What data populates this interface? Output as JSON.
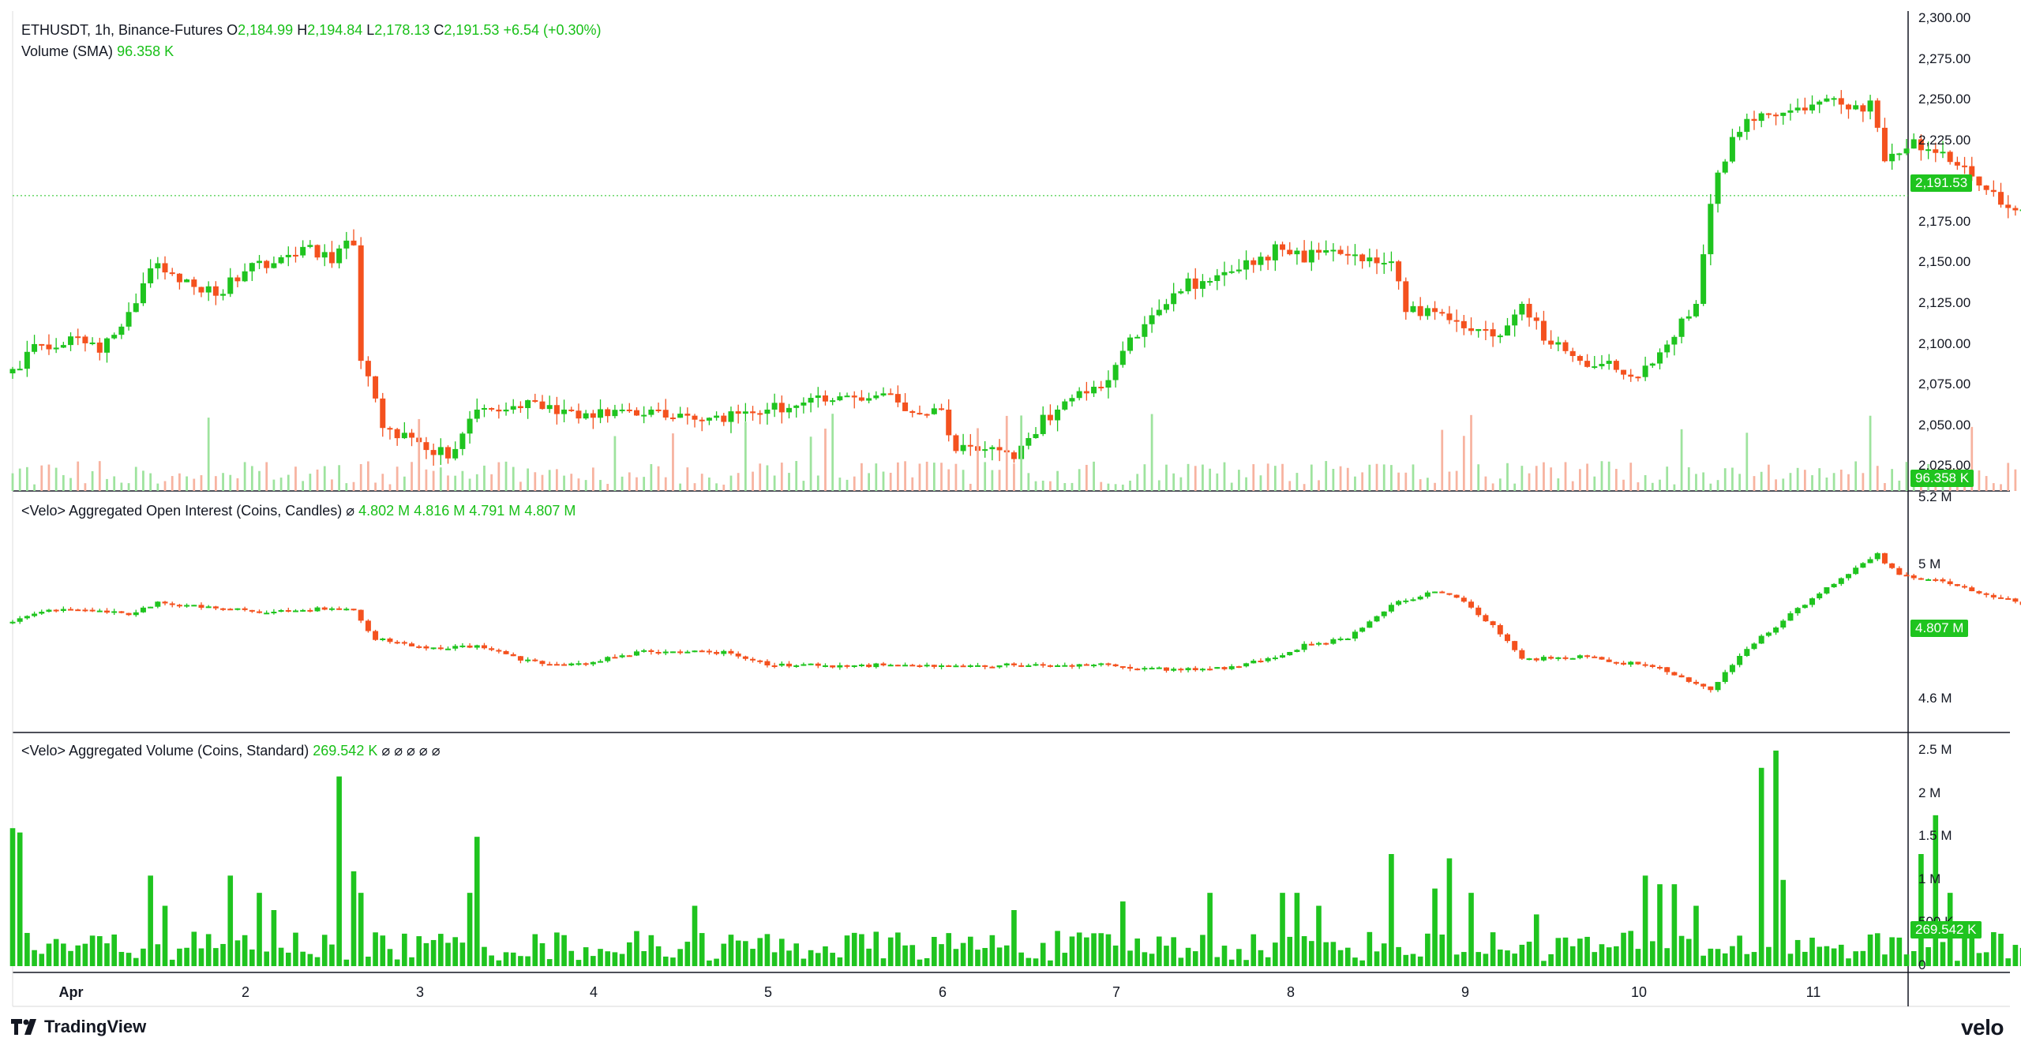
{
  "header": {
    "symbol_line": "ETHUSDT, 1h, Binance-Futures",
    "ohlc": [
      {
        "k": "O",
        "v": "2,184.99"
      },
      {
        "k": "H",
        "v": "2,194.84"
      },
      {
        "k": "L",
        "v": "2,178.13"
      },
      {
        "k": "C",
        "v": "2,191.53"
      }
    ],
    "change": "+6.54 (+0.30%)",
    "volume_label": "Volume (SMA)",
    "volume_value": "96.358 K"
  },
  "panes": {
    "oi": {
      "title": "<Velo> Aggregated Open Interest (Coins, Candles)",
      "sym": "⌀",
      "values": [
        "4.802 M",
        "4.816 M",
        "4.791 M",
        "4.807 M"
      ]
    },
    "vol": {
      "title": "<Velo> Aggregated Volume (Coins, Standard)",
      "value": "269.542 K",
      "trail": "⌀ ⌀ ⌀ ⌀ ⌀"
    }
  },
  "axes": {
    "price_ticks": [
      "2,300.00",
      "2,275.00",
      "2,250.00",
      "2,225.00",
      "2,200.00",
      "2,175.00",
      "2,150.00",
      "2,125.00",
      "2,100.00",
      "2,075.00",
      "2,050.00",
      "2,025.00"
    ],
    "oi_ticks": [
      "5.2 M",
      "5 M",
      "4.6 M"
    ],
    "vol_ticks": [
      "2.5 M",
      "2 M",
      "1.5 M",
      "1 M",
      "500 K",
      "0"
    ],
    "dates": [
      "Apr",
      "2",
      "3",
      "4",
      "5",
      "6",
      "7",
      "8",
      "9",
      "10",
      "11"
    ]
  },
  "tags": {
    "price": "2,191.53",
    "volume_sma": "96.358 K",
    "oi": "4.807 M",
    "agg_vol": "269.542 K"
  },
  "branding": {
    "left": "TradingView",
    "right": "velo"
  },
  "colors": {
    "up": "#1fc41f",
    "down": "#f4511e",
    "up_vol": "#9ee39e",
    "down_vol": "#f7b3a0",
    "grid": "#131722"
  },
  "chart_data": [
    {
      "type": "candlestick",
      "title": "ETHUSDT, 1h, Binance-Futures",
      "x_labels": [
        "Apr",
        "2",
        "3",
        "4",
        "5",
        "6",
        "7",
        "8",
        "9",
        "10",
        "11"
      ],
      "ylim": [
        2010,
        2305
      ],
      "anchors_close": [
        [
          0,
          2085
        ],
        [
          4,
          2100
        ],
        [
          8,
          2105
        ],
        [
          12,
          2095
        ],
        [
          16,
          2120
        ],
        [
          20,
          2150
        ],
        [
          24,
          2140
        ],
        [
          28,
          2130
        ],
        [
          32,
          2145
        ],
        [
          36,
          2150
        ],
        [
          40,
          2160
        ],
        [
          44,
          2150
        ],
        [
          47,
          2165
        ],
        [
          48,
          2090
        ],
        [
          51,
          2050
        ],
        [
          56,
          2040
        ],
        [
          60,
          2030
        ],
        [
          64,
          2060
        ],
        [
          68,
          2060
        ],
        [
          72,
          2065
        ],
        [
          76,
          2060
        ],
        [
          80,
          2055
        ],
        [
          84,
          2060
        ],
        [
          88,
          2060
        ],
        [
          96,
          2055
        ],
        [
          104,
          2060
        ],
        [
          112,
          2065
        ],
        [
          120,
          2070
        ],
        [
          124,
          2058
        ],
        [
          128,
          2060
        ],
        [
          130,
          2035
        ],
        [
          134,
          2040
        ],
        [
          138,
          2030
        ],
        [
          142,
          2055
        ],
        [
          146,
          2065
        ],
        [
          150,
          2075
        ],
        [
          154,
          2100
        ],
        [
          158,
          2125
        ],
        [
          162,
          2138
        ],
        [
          166,
          2140
        ],
        [
          170,
          2150
        ],
        [
          174,
          2158
        ],
        [
          178,
          2153
        ],
        [
          182,
          2160
        ],
        [
          186,
          2150
        ],
        [
          190,
          2150
        ],
        [
          192,
          2120
        ],
        [
          196,
          2120
        ],
        [
          200,
          2110
        ],
        [
          204,
          2105
        ],
        [
          208,
          2125
        ],
        [
          212,
          2100
        ],
        [
          216,
          2090
        ],
        [
          220,
          2090
        ],
        [
          224,
          2080
        ],
        [
          228,
          2100
        ],
        [
          232,
          2125
        ],
        [
          234,
          2190
        ],
        [
          238,
          2235
        ],
        [
          242,
          2240
        ],
        [
          246,
          2245
        ],
        [
          250,
          2250
        ],
        [
          254,
          2245
        ],
        [
          256,
          2250
        ],
        [
          258,
          2210
        ],
        [
          262,
          2225
        ],
        [
          266,
          2215
        ],
        [
          270,
          2205
        ],
        [
          274,
          2185
        ],
        [
          278,
          2180
        ],
        [
          282,
          2182
        ],
        [
          286,
          2185
        ],
        [
          288,
          2192
        ]
      ],
      "last": {
        "open": 2184.99,
        "high": 2194.84,
        "low": 2178.13,
        "close": 2191.53
      }
    },
    {
      "type": "candlestick",
      "title": "<Velo> Aggregated Open Interest (Coins, Candles)",
      "ylim": [
        4.5,
        5.22
      ],
      "anchors_close": [
        [
          0,
          4.83
        ],
        [
          4,
          4.86
        ],
        [
          10,
          4.87
        ],
        [
          16,
          4.85
        ],
        [
          20,
          4.89
        ],
        [
          24,
          4.88
        ],
        [
          28,
          4.87
        ],
        [
          36,
          4.86
        ],
        [
          44,
          4.87
        ],
        [
          47,
          4.86
        ],
        [
          50,
          4.78
        ],
        [
          54,
          4.76
        ],
        [
          60,
          4.75
        ],
        [
          64,
          4.76
        ],
        [
          70,
          4.72
        ],
        [
          76,
          4.7
        ],
        [
          80,
          4.71
        ],
        [
          86,
          4.74
        ],
        [
          92,
          4.74
        ],
        [
          98,
          4.74
        ],
        [
          104,
          4.7
        ],
        [
          112,
          4.7
        ],
        [
          120,
          4.7
        ],
        [
          130,
          4.7
        ],
        [
          140,
          4.7
        ],
        [
          150,
          4.7
        ],
        [
          158,
          4.69
        ],
        [
          166,
          4.69
        ],
        [
          174,
          4.72
        ],
        [
          178,
          4.76
        ],
        [
          184,
          4.78
        ],
        [
          190,
          4.88
        ],
        [
          196,
          4.92
        ],
        [
          200,
          4.89
        ],
        [
          204,
          4.82
        ],
        [
          208,
          4.72
        ],
        [
          212,
          4.72
        ],
        [
          216,
          4.73
        ],
        [
          220,
          4.71
        ],
        [
          226,
          4.7
        ],
        [
          230,
          4.66
        ],
        [
          234,
          4.63
        ],
        [
          238,
          4.73
        ],
        [
          242,
          4.8
        ],
        [
          248,
          4.9
        ],
        [
          254,
          4.99
        ],
        [
          257,
          5.03
        ],
        [
          260,
          4.97
        ],
        [
          266,
          4.95
        ],
        [
          272,
          4.91
        ],
        [
          280,
          4.87
        ],
        [
          288,
          4.82
        ]
      ],
      "last": {
        "open": 4.802,
        "high": 4.816,
        "low": 4.791,
        "close": 4.807
      }
    },
    {
      "type": "bar",
      "title": "<Velo> Aggregated Volume (Coins, Standard)",
      "ylim": [
        0,
        2.6
      ],
      "spikes_millions": [
        [
          0,
          1.6
        ],
        [
          1,
          1.55
        ],
        [
          19,
          1.05
        ],
        [
          21,
          0.7
        ],
        [
          30,
          1.05
        ],
        [
          34,
          0.85
        ],
        [
          36,
          0.65
        ],
        [
          45,
          2.2
        ],
        [
          47,
          1.1
        ],
        [
          48,
          0.85
        ],
        [
          63,
          0.85
        ],
        [
          64,
          1.5
        ],
        [
          94,
          0.7
        ],
        [
          138,
          0.65
        ],
        [
          153,
          0.75
        ],
        [
          165,
          0.85
        ],
        [
          175,
          0.85
        ],
        [
          177,
          0.85
        ],
        [
          180,
          0.7
        ],
        [
          190,
          1.3
        ],
        [
          196,
          0.9
        ],
        [
          198,
          1.25
        ],
        [
          201,
          0.85
        ],
        [
          210,
          0.6
        ],
        [
          225,
          1.05
        ],
        [
          227,
          0.95
        ],
        [
          229,
          0.95
        ],
        [
          232,
          0.7
        ],
        [
          241,
          2.3
        ],
        [
          243,
          2.5
        ],
        [
          244,
          1.0
        ],
        [
          263,
          1.3
        ],
        [
          265,
          1.75
        ],
        [
          267,
          0.85
        ],
        [
          280,
          0.65
        ],
        [
          286,
          0.4
        ]
      ],
      "last_value_thousands": 269.542
    }
  ]
}
